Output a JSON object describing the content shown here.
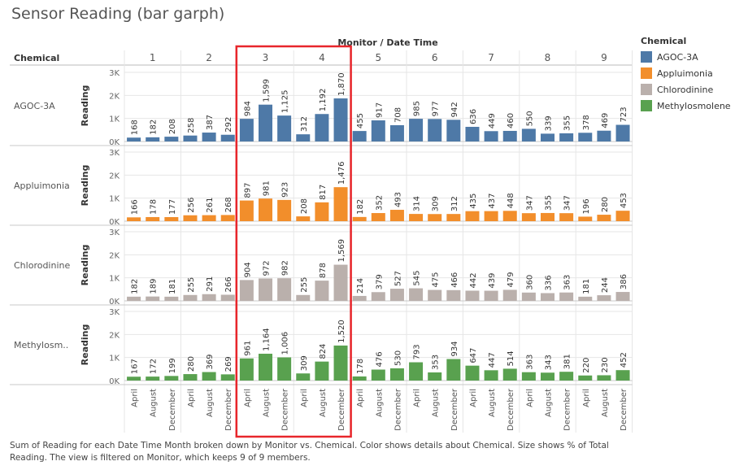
{
  "title": "Sensor Reading (bar garph)",
  "caption": "Sum of Reading for each Date Time Month broken down by Monitor vs. Chemical.  Color shows details about Chemical.  Size shows % of Total Reading. The view is filtered on Monitor, which keeps 9 of 9 members.",
  "chart_data": {
    "type": "bar",
    "column_header": "Monitor / Date Time",
    "row_header": "Chemical",
    "ylabel": "Reading",
    "ylim": [
      0,
      3000
    ],
    "yticks": [
      "0K",
      "1K",
      "2K",
      "3K"
    ],
    "ytick_values": [
      0,
      1000,
      2000,
      3000
    ],
    "monitors": [
      "1",
      "2",
      "3",
      "4",
      "5",
      "6",
      "7",
      "8",
      "9"
    ],
    "months": [
      "April",
      "August",
      "December"
    ],
    "series": [
      {
        "name": "AGOC-3A",
        "row_label": "AGOC-3A",
        "color": "#4e79a7",
        "values": [
          [
            168,
            182,
            208
          ],
          [
            258,
            387,
            292
          ],
          [
            984,
            1599,
            1125
          ],
          [
            312,
            1192,
            1870
          ],
          [
            455,
            917,
            708
          ],
          [
            985,
            977,
            942
          ],
          [
            636,
            449,
            460
          ],
          [
            550,
            339,
            355
          ],
          [
            378,
            469,
            723
          ]
        ],
        "labels": [
          [
            "168",
            "182",
            "208"
          ],
          [
            "258",
            "387",
            "292"
          ],
          [
            "984",
            "1,599",
            "1,125"
          ],
          [
            "312",
            "1,192",
            "1,870"
          ],
          [
            "455",
            "917",
            "708"
          ],
          [
            "985",
            "977",
            "942"
          ],
          [
            "636",
            "449",
            "460"
          ],
          [
            "550",
            "339",
            "355"
          ],
          [
            "378",
            "469",
            "723"
          ]
        ]
      },
      {
        "name": "Appluimonia",
        "row_label": "Appluimonia",
        "color": "#f28e2b",
        "values": [
          [
            166,
            178,
            177
          ],
          [
            256,
            261,
            268
          ],
          [
            897,
            981,
            923
          ],
          [
            208,
            817,
            1476
          ],
          [
            182,
            352,
            493
          ],
          [
            314,
            309,
            312
          ],
          [
            435,
            437,
            448
          ],
          [
            347,
            355,
            347
          ],
          [
            196,
            280,
            453
          ]
        ],
        "labels": [
          [
            "166",
            "178",
            "177"
          ],
          [
            "256",
            "261",
            "268"
          ],
          [
            "897",
            "981",
            "923"
          ],
          [
            "208",
            "817",
            "1,476"
          ],
          [
            "182",
            "352",
            "493"
          ],
          [
            "314",
            "309",
            "312"
          ],
          [
            "435",
            "437",
            "448"
          ],
          [
            "347",
            "355",
            "347"
          ],
          [
            "196",
            "280",
            "453"
          ]
        ]
      },
      {
        "name": "Chlorodinine",
        "row_label": "Chlorodinine",
        "color": "#bab0ac",
        "values": [
          [
            182,
            189,
            181
          ],
          [
            255,
            291,
            266
          ],
          [
            904,
            972,
            982
          ],
          [
            255,
            878,
            1569
          ],
          [
            214,
            379,
            527
          ],
          [
            545,
            475,
            466
          ],
          [
            442,
            439,
            479
          ],
          [
            360,
            336,
            363
          ],
          [
            181,
            244,
            386
          ]
        ],
        "labels": [
          [
            "182",
            "189",
            "181"
          ],
          [
            "255",
            "291",
            "266"
          ],
          [
            "904",
            "972",
            "982"
          ],
          [
            "255",
            "878",
            "1,569"
          ],
          [
            "214",
            "379",
            "527"
          ],
          [
            "545",
            "475",
            "466"
          ],
          [
            "442",
            "439",
            "479"
          ],
          [
            "360",
            "336",
            "363"
          ],
          [
            "181",
            "244",
            "386"
          ]
        ]
      },
      {
        "name": "Methylosmolene",
        "row_label": "Methylosm..",
        "color": "#59a14f",
        "values": [
          [
            167,
            172,
            199
          ],
          [
            280,
            369,
            269
          ],
          [
            961,
            1164,
            1006
          ],
          [
            309,
            824,
            1520
          ],
          [
            178,
            476,
            530
          ],
          [
            793,
            353,
            934
          ],
          [
            647,
            447,
            514
          ],
          [
            363,
            343,
            381
          ],
          [
            220,
            230,
            452
          ]
        ],
        "labels": [
          [
            "167",
            "172",
            "199"
          ],
          [
            "280",
            "369",
            "269"
          ],
          [
            "961",
            "1,164",
            "1,006"
          ],
          [
            "309",
            "824",
            "1,520"
          ],
          [
            "178",
            "476",
            "530"
          ],
          [
            "793",
            "353",
            "934"
          ],
          [
            "647",
            "447",
            "514"
          ],
          [
            "363",
            "343",
            "381"
          ],
          [
            "220",
            "230",
            "452"
          ]
        ]
      }
    ],
    "highlight": {
      "monitors": [
        "3",
        "4"
      ],
      "color": "#e8262b"
    },
    "legend_title": "Chemical",
    "legend_position": "right"
  }
}
